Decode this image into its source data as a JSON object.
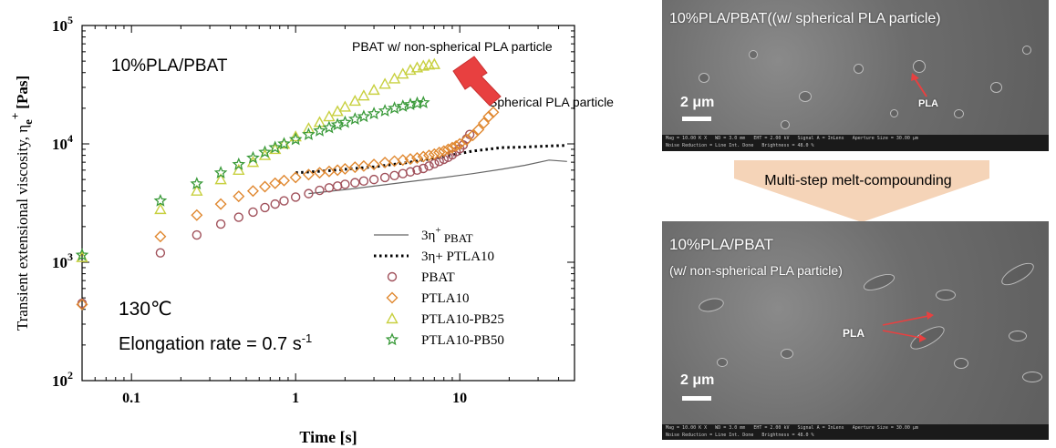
{
  "chart_data": {
    "type": "scatter",
    "ylabel": "Transient extensional viscosity, η",
    "ylabel_sub": "e",
    "ylabel_sup": "+",
    "ylabel_unit": "[Pas]",
    "xlabel": "Time [s]",
    "xscale": "log",
    "yscale": "log",
    "xlim": [
      0.05,
      50
    ],
    "ylim": [
      100,
      100000
    ],
    "x_ticks": [
      {
        "value": 0.1,
        "label": "0.1"
      },
      {
        "value": 1,
        "label": "1"
      },
      {
        "value": 10,
        "label": "10"
      }
    ],
    "y_ticks": [
      {
        "value": 100,
        "base": "10",
        "exp": "2"
      },
      {
        "value": 1000,
        "base": "10",
        "exp": "3"
      },
      {
        "value": 10000,
        "base": "10",
        "exp": "4"
      },
      {
        "value": 100000,
        "base": "10",
        "exp": "5"
      }
    ],
    "lines": [
      {
        "name": "3η",
        "name_sup": "+",
        "name_sub": "PBAT",
        "style": "solid",
        "color": "#666666",
        "points": [
          [
            1.2,
            3800
          ],
          [
            2,
            4100
          ],
          [
            3,
            4400
          ],
          [
            5,
            4800
          ],
          [
            8,
            5200
          ],
          [
            12,
            5600
          ],
          [
            18,
            6100
          ],
          [
            25,
            6600
          ],
          [
            35,
            7300
          ],
          [
            45,
            7100
          ]
        ]
      },
      {
        "name": "3η+ PTLA10",
        "style": "dotted",
        "color": "#000000",
        "points": [
          [
            1,
            5700
          ],
          [
            1.5,
            5900
          ],
          [
            2,
            6100
          ],
          [
            3,
            6400
          ],
          [
            5,
            7000
          ],
          [
            8,
            7800
          ],
          [
            12,
            8700
          ],
          [
            18,
            9300
          ],
          [
            25,
            9400
          ],
          [
            35,
            9600
          ],
          [
            45,
            9700
          ]
        ]
      }
    ],
    "series": [
      {
        "name": "PBAT",
        "marker": "circle",
        "color": "#a0505a",
        "points": [
          [
            0.05,
            450
          ],
          [
            0.15,
            1200
          ],
          [
            0.25,
            1700
          ],
          [
            0.35,
            2100
          ],
          [
            0.45,
            2400
          ],
          [
            0.55,
            2650
          ],
          [
            0.65,
            2900
          ],
          [
            0.75,
            3100
          ],
          [
            0.85,
            3300
          ],
          [
            1,
            3550
          ],
          [
            1.2,
            3800
          ],
          [
            1.4,
            4050
          ],
          [
            1.6,
            4250
          ],
          [
            1.8,
            4400
          ],
          [
            2,
            4550
          ],
          [
            2.3,
            4700
          ],
          [
            2.6,
            4850
          ],
          [
            3,
            5000
          ],
          [
            3.5,
            5200
          ],
          [
            4,
            5400
          ],
          [
            4.5,
            5600
          ],
          [
            5,
            5800
          ],
          [
            5.5,
            6000
          ],
          [
            6,
            6200
          ],
          [
            6.5,
            6500
          ],
          [
            7,
            6800
          ],
          [
            7.5,
            7100
          ],
          [
            8,
            7400
          ],
          [
            8.5,
            7700
          ],
          [
            9,
            8100
          ],
          [
            9.5,
            8600
          ],
          [
            10,
            9100
          ],
          [
            10.5,
            9800
          ],
          [
            11,
            11000
          ],
          [
            11.5,
            12000
          ]
        ]
      },
      {
        "name": "PTLA10",
        "marker": "diamond",
        "color": "#e08830",
        "points": [
          [
            0.05,
            440
          ],
          [
            0.15,
            1650
          ],
          [
            0.25,
            2500
          ],
          [
            0.35,
            3100
          ],
          [
            0.45,
            3600
          ],
          [
            0.55,
            4000
          ],
          [
            0.65,
            4350
          ],
          [
            0.75,
            4650
          ],
          [
            0.85,
            4900
          ],
          [
            1,
            5200
          ],
          [
            1.2,
            5500
          ],
          [
            1.4,
            5700
          ],
          [
            1.6,
            5850
          ],
          [
            1.8,
            6000
          ],
          [
            2,
            6150
          ],
          [
            2.3,
            6350
          ],
          [
            2.6,
            6500
          ],
          [
            3,
            6700
          ],
          [
            3.5,
            6950
          ],
          [
            4,
            7150
          ],
          [
            4.5,
            7300
          ],
          [
            5,
            7450
          ],
          [
            5.5,
            7600
          ],
          [
            6,
            7800
          ],
          [
            6.5,
            8000
          ],
          [
            7,
            8200
          ],
          [
            7.5,
            8450
          ],
          [
            8,
            8700
          ],
          [
            8.5,
            9000
          ],
          [
            9,
            9300
          ],
          [
            9.5,
            9600
          ],
          [
            10,
            10000
          ],
          [
            11,
            10800
          ],
          [
            12,
            11800
          ],
          [
            13,
            13200
          ],
          [
            14,
            15000
          ],
          [
            15,
            17000
          ],
          [
            16,
            18500
          ]
        ]
      },
      {
        "name": "PTLA10-PB25",
        "marker": "triangle",
        "color": "#c8d040",
        "points": [
          [
            0.05,
            1100
          ],
          [
            0.15,
            2800
          ],
          [
            0.25,
            4000
          ],
          [
            0.35,
            5000
          ],
          [
            0.45,
            6000
          ],
          [
            0.55,
            7000
          ],
          [
            0.65,
            8000
          ],
          [
            0.75,
            9000
          ],
          [
            0.85,
            10000
          ],
          [
            1,
            11500
          ],
          [
            1.2,
            13500
          ],
          [
            1.4,
            15200
          ],
          [
            1.6,
            17000
          ],
          [
            1.8,
            18800
          ],
          [
            2,
            20500
          ],
          [
            2.3,
            23000
          ],
          [
            2.6,
            25500
          ],
          [
            3,
            28500
          ],
          [
            3.5,
            32000
          ],
          [
            4,
            35500
          ],
          [
            4.5,
            39000
          ],
          [
            5,
            42000
          ],
          [
            5.5,
            44000
          ],
          [
            6,
            45500
          ],
          [
            6.5,
            46500
          ],
          [
            7,
            47000
          ]
        ]
      },
      {
        "name": "PTLA10-PB50",
        "marker": "star",
        "color": "#3a9a3a",
        "points": [
          [
            0.05,
            1150
          ],
          [
            0.15,
            3300
          ],
          [
            0.25,
            4600
          ],
          [
            0.35,
            5700
          ],
          [
            0.45,
            6700
          ],
          [
            0.55,
            7600
          ],
          [
            0.65,
            8500
          ],
          [
            0.75,
            9300
          ],
          [
            0.85,
            10000
          ],
          [
            1,
            10900
          ],
          [
            1.2,
            12000
          ],
          [
            1.4,
            12900
          ],
          [
            1.6,
            13700
          ],
          [
            1.8,
            14500
          ],
          [
            2,
            15200
          ],
          [
            2.3,
            16200
          ],
          [
            2.6,
            17000
          ],
          [
            3,
            18000
          ],
          [
            3.5,
            19000
          ],
          [
            4,
            20000
          ],
          [
            4.5,
            20800
          ],
          [
            5,
            21500
          ],
          [
            5.5,
            22000
          ],
          [
            6,
            22300
          ]
        ]
      }
    ],
    "annotations": {
      "title": "10%PLA/PBAT",
      "temperature": "130℃",
      "rate_text": "Elongation rate = 0.7 s",
      "rate_sup": "-1",
      "label_non_spherical": "PBAT w/ non-spherical PLA particle",
      "label_spherical": "Spherical PLA particle"
    }
  },
  "sem_top": {
    "title": "10%PLA/PBAT((w/ spherical PLA particle)",
    "scale": "2 μm",
    "particle_label": "PLA"
  },
  "process": {
    "label": "Multi-step melt-compounding"
  },
  "sem_bottom": {
    "title_line1": "10%PLA/PBAT",
    "title_line2": "(w/ non-spherical PLA particle)",
    "scale": "2 μm",
    "particle_label": "PLA"
  },
  "colors": {
    "arrow_red": "#e84040",
    "process_arrow": "#f5d4b8"
  }
}
